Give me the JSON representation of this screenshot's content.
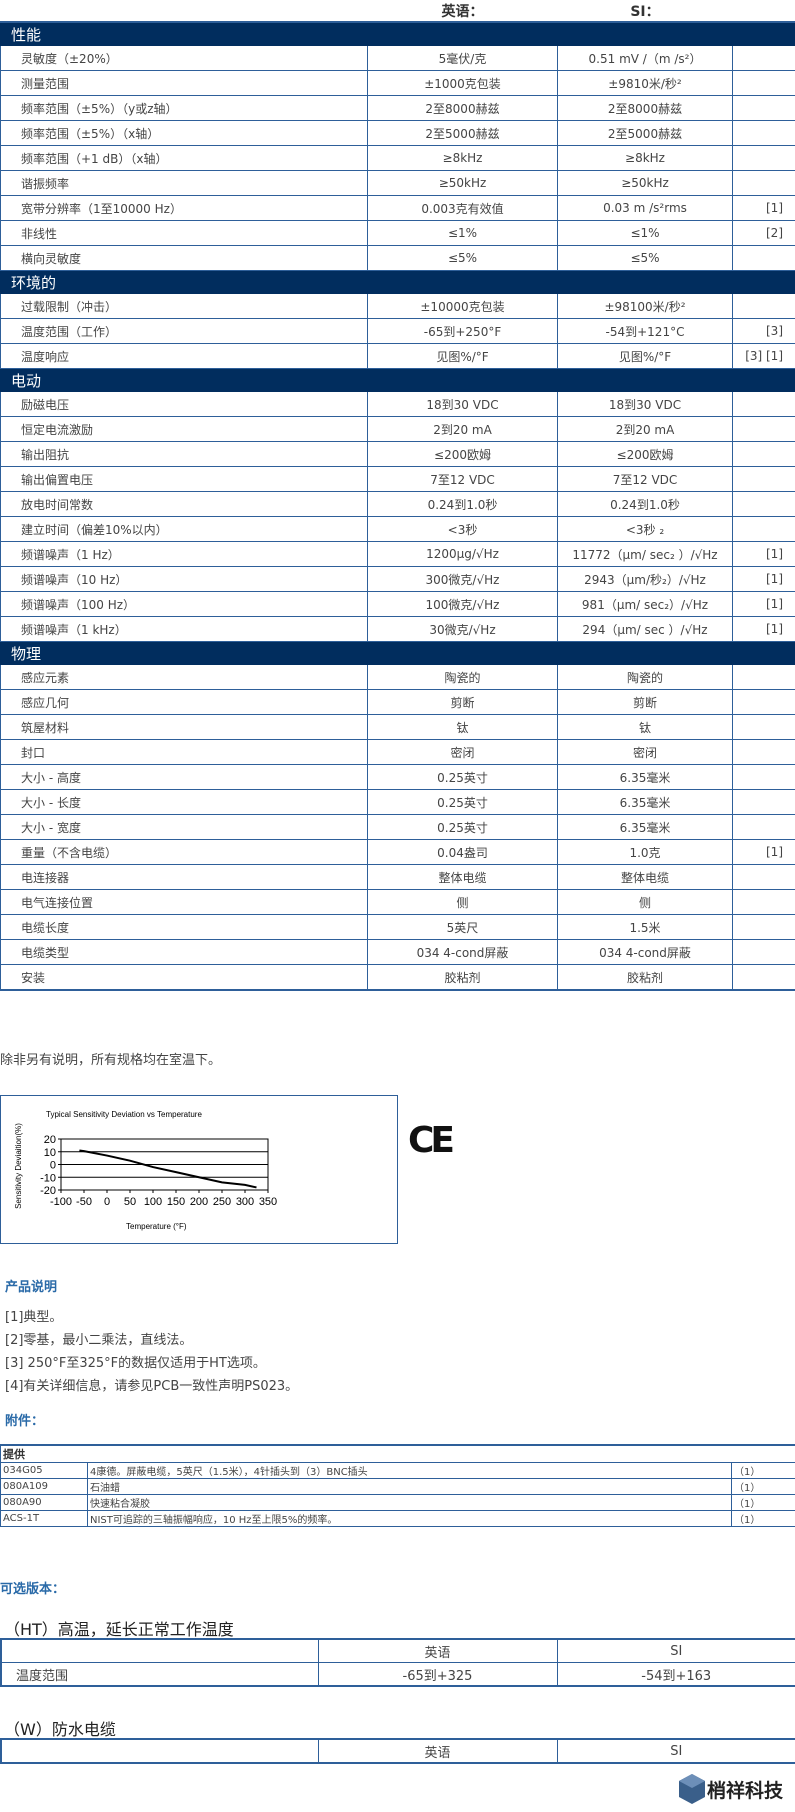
{
  "header": {
    "english": "英语：",
    "si": "SI："
  },
  "sections": [
    {
      "title": "性能",
      "rows": [
        [
          "灵敏度（±20%）",
          "5毫伏/克",
          "0.51 mV /（m /s²）",
          ""
        ],
        [
          "测量范围",
          "±1000克包装",
          "±9810米/秒²",
          ""
        ],
        [
          "频率范围（±5%）（y或z轴）",
          "2至8000赫兹",
          "2至8000赫兹",
          ""
        ],
        [
          "频率范围（±5%）（x轴）",
          "2至5000赫兹",
          "2至5000赫兹",
          ""
        ],
        [
          "频率范围（+1 dB）（x轴）",
          "≥8kHz",
          "≥8kHz",
          ""
        ],
        [
          "谐振频率",
          "≥50kHz",
          "≥50kHz",
          ""
        ],
        [
          "宽带分辨率（1至10000 Hz）",
          "0.003克有效值",
          "0.03 m /s²rms",
          "[1]"
        ],
        [
          "非线性",
          "≤1%",
          "≤1%",
          "[2]"
        ],
        [
          "横向灵敏度",
          "≤5%",
          "≤5%",
          ""
        ]
      ]
    },
    {
      "title": "环境的",
      "rows": [
        [
          "过载限制（冲击）",
          "±10000克包装",
          "±98100米/秒²",
          ""
        ],
        [
          "温度范围（工作）",
          "-65到+250°F",
          "-54到+121°C",
          "[3]"
        ],
        [
          "温度响应",
          "见图%/°F",
          "见图%/°F",
          "[3] [1]"
        ]
      ]
    },
    {
      "title": "电动",
      "rows": [
        [
          "励磁电压",
          "18到30 VDC",
          "18到30 VDC",
          ""
        ],
        [
          "恒定电流激励",
          "2到20 mA",
          "2到20 mA",
          ""
        ],
        [
          "输出阻抗",
          "≤200欧姆",
          "≤200欧姆",
          ""
        ],
        [
          "输出偏置电压",
          "7至12 VDC",
          "7至12 VDC",
          ""
        ],
        [
          "放电时间常数",
          "0.24到1.0秒",
          "0.24到1.0秒",
          ""
        ],
        [
          "建立时间（偏差10%以内）",
          "<3秒",
          "<3秒 ₂",
          ""
        ],
        [
          "频谱噪声（1 Hz）",
          "1200μg/√Hz",
          "11772（μm/ sec₂ ）/√Hz",
          "[1]"
        ],
        [
          "频谱噪声（10 Hz）",
          "300微克/√Hz",
          "2943（μm/秒₂）/√Hz",
          "[1]"
        ],
        [
          "频谱噪声（100 Hz）",
          "100微克/√Hz",
          "981（μm/ sec₂）/√Hz",
          "[1]"
        ],
        [
          "频谱噪声（1 kHz）",
          "30微克/√Hz",
          "294（μm/ sec ）/√Hz",
          "[1]"
        ]
      ]
    },
    {
      "title": "物理",
      "rows": [
        [
          "感应元素",
          "陶瓷的",
          "陶瓷的",
          ""
        ],
        [
          "感应几何",
          "剪断",
          "剪断",
          ""
        ],
        [
          "筑屋材料",
          "钛",
          "钛",
          ""
        ],
        [
          "封口",
          "密闭",
          "密闭",
          ""
        ],
        [
          "大小 - 高度",
          "0.25英寸",
          "6.35毫米",
          ""
        ],
        [
          "大小 - 长度",
          "0.25英寸",
          "6.35毫米",
          ""
        ],
        [
          "大小 - 宽度",
          "0.25英寸",
          "6.35毫米",
          ""
        ],
        [
          "重量（不含电缆）",
          "0.04盎司",
          "1.0克",
          "[1]"
        ],
        [
          "电连接器",
          "整体电缆",
          "整体电缆",
          ""
        ],
        [
          "电气连接位置",
          "侧",
          "侧",
          ""
        ],
        [
          "电缆长度",
          "5英尺",
          "1.5米",
          ""
        ],
        [
          "电缆类型",
          "034 4-cond屏蔽",
          "034 4-cond屏蔽",
          ""
        ],
        [
          "安装",
          "胶粘剂",
          "胶粘剂",
          ""
        ]
      ]
    }
  ],
  "room_temp_note": "除非另有说明，所有规格均在室温下。",
  "chart_data": {
    "type": "line",
    "title": "Typical Sensitivity Deviation vs Temperature",
    "xlabel": "Temperature (°F)",
    "ylabel": "Sensitivity Deviaition(%)",
    "xlim": [
      -100,
      350
    ],
    "ylim": [
      -20,
      20
    ],
    "xticks": [
      -100,
      -50,
      0,
      50,
      100,
      150,
      200,
      250,
      300,
      350
    ],
    "yticks": [
      20,
      10,
      0,
      -10,
      -20
    ],
    "grid": "horizontal",
    "x": [
      -60,
      -50,
      0,
      50,
      100,
      150,
      200,
      250,
      300,
      325
    ],
    "y": [
      11,
      10.5,
      7,
      3,
      -2,
      -6,
      -10,
      -14,
      -16,
      -18
    ]
  },
  "ce_mark": "CE",
  "notes": {
    "title": "产品说明",
    "items": [
      "[1]典型。",
      "[2]零基，最小二乘法，直线法。",
      "[3] 250°F至325°F的数据仅适用于HT选项。",
      "[4]有关详细信息，请参见PCB一致性声明PS023。"
    ]
  },
  "accessories": {
    "title": "附件：",
    "header": "提供",
    "rows": [
      [
        "034G05",
        "4康德。屏蔽电缆，5英尺（1.5米），4针插头到（3）BNC插头",
        "（1）"
      ],
      [
        "080A109",
        "石油蜡",
        "（1）"
      ],
      [
        "080A90",
        "快速粘合凝胶",
        "（1）"
      ],
      [
        "ACS-1T",
        "NIST可追踪的三轴振幅响应，10 Hz至上限5%的频率。",
        "（1）"
      ]
    ]
  },
  "options": {
    "title": "可选版本：",
    "ht": {
      "title": "（HT）高温，延长正常工作温度",
      "col_english": "英语",
      "col_si": "SI",
      "row_label": "温度范围",
      "english": "-65到+325",
      "si": "-54到+163"
    },
    "w": {
      "title": "（W）防水电缆",
      "col_english": "英语",
      "col_si": "SI"
    }
  },
  "logo": {
    "text": "梢祥科技",
    "color": "#3a5f8a"
  },
  "colors": {
    "section_bar": "#012d5e",
    "border": "#2e5f99",
    "accent_text": "#2a6aa8"
  }
}
